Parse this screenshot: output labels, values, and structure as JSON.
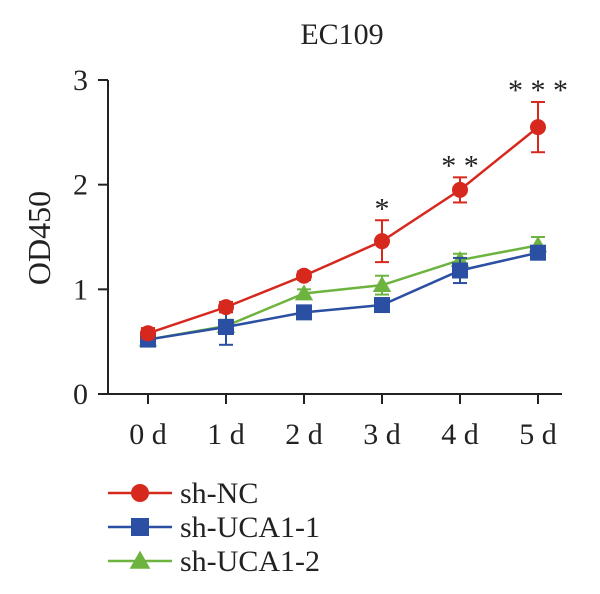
{
  "chart_data": {
    "type": "line",
    "title": "EC109",
    "xlabel": "",
    "ylabel": "OD450",
    "categories": [
      "0 d",
      "1 d",
      "2 d",
      "3 d",
      "4 d",
      "5 d"
    ],
    "ylim": [
      0,
      3
    ],
    "yticks": [
      0,
      1,
      2,
      3
    ],
    "grid": false,
    "legend": "bottom-left",
    "series": [
      {
        "name": "sh-NC",
        "color": "#d7281e",
        "marker": "circle",
        "values": [
          0.58,
          0.83,
          1.13,
          1.46,
          1.95,
          2.55
        ],
        "errors": [
          0.05,
          0.05,
          0.04,
          0.2,
          0.12,
          0.24
        ]
      },
      {
        "name": "sh-UCA1-1",
        "color": "#2b4fa2",
        "marker": "square",
        "values": [
          0.52,
          0.64,
          0.78,
          0.85,
          1.18,
          1.35
        ],
        "errors": [
          0.05,
          0.17,
          0.04,
          0.04,
          0.12,
          0.05
        ]
      },
      {
        "name": "sh-UCA1-2",
        "color": "#6db33f",
        "marker": "triangle",
        "values": [
          0.52,
          0.65,
          0.96,
          1.04,
          1.28,
          1.42
        ],
        "errors": [
          0.04,
          0.06,
          0.04,
          0.09,
          0.06,
          0.08
        ]
      }
    ],
    "annotations": [
      {
        "category": "3 d",
        "text": "*"
      },
      {
        "category": "4 d",
        "text": "* *"
      },
      {
        "category": "5 d",
        "text": "* * *"
      }
    ]
  }
}
